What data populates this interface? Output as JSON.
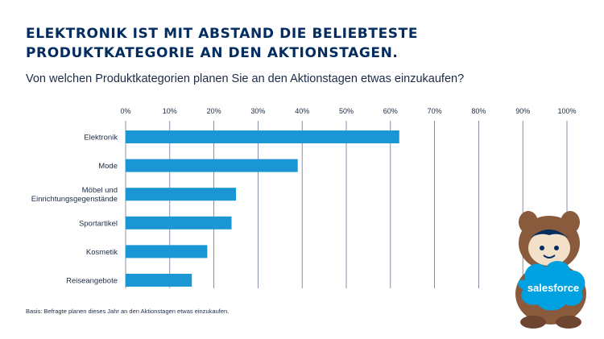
{
  "title": "ELEKTRONIK IST MIT ABSTAND DIE BELIEBTESTE PRODUKTKATEGORIE AN DEN AKTIONSTAGEN.",
  "subtitle": "Von welchen Produktkategorien planen Sie an den Aktionstagen etwas einzukaufen?",
  "footnote": "Basis: Befragte planen dieses Jahr an den Aktionstagen etwas einzukaufen.",
  "logo_text": "salesforce",
  "colors": {
    "bar": "#1b96d4",
    "title": "#032d60",
    "grid": "#6b7694",
    "text": "#1c2b45",
    "logo_cloud": "#00a1e0",
    "mascot_fur": "#8a5a3c"
  },
  "chart_data": {
    "type": "bar",
    "orientation": "horizontal",
    "categories": [
      "Elektronik",
      "Mode",
      "Möbel und Einrichtungsgegenstände",
      "Sportartikel",
      "Kosmetik",
      "Reiseangebote"
    ],
    "values": [
      62,
      39,
      25,
      24,
      18.5,
      15
    ],
    "xlim": [
      0,
      100
    ],
    "xticks": [
      0,
      10,
      20,
      30,
      40,
      50,
      60,
      70,
      80,
      90,
      100
    ],
    "xtick_labels": [
      "0%",
      "10%",
      "20%",
      "30%",
      "40%",
      "50%",
      "60%",
      "70%",
      "80%",
      "90%",
      "100%"
    ],
    "grid": true
  }
}
